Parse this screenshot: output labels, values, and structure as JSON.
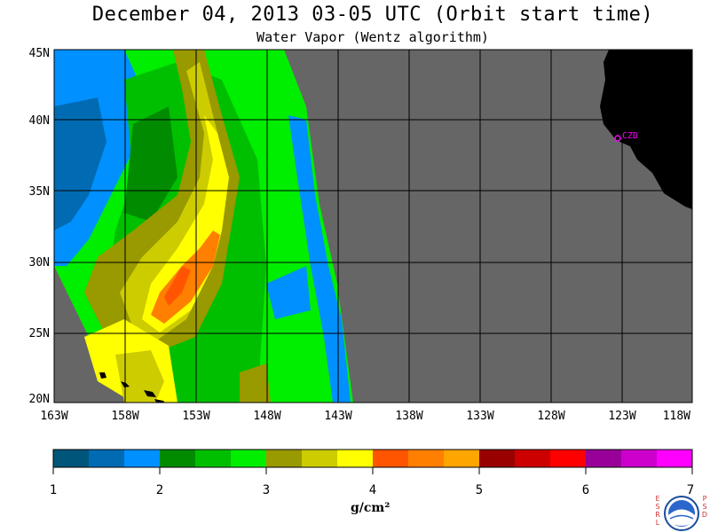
{
  "header": {
    "title": "December 04, 2013  03-05 UTC  (Orbit start time)",
    "subtitle": "Water Vapor (Wentz algorithm)"
  },
  "axes": {
    "lat_labels": [
      "45N",
      "40N",
      "35N",
      "30N",
      "25N",
      "20N"
    ],
    "lon_labels": [
      "163W",
      "158W",
      "153W",
      "148W",
      "143W",
      "138W",
      "133W",
      "128W",
      "123W",
      "118W"
    ]
  },
  "station": {
    "label": "CZD",
    "color": "#ff00ff"
  },
  "colorbar": {
    "tick_labels": [
      "1",
      "2",
      "3",
      "4",
      "5",
      "6",
      "7"
    ],
    "units": "g/cm²",
    "colors": [
      "#00557a",
      "#006bb3",
      "#0090ff",
      "#008b00",
      "#00bf00",
      "#00ee00",
      "#999900",
      "#cccc00",
      "#ffff00",
      "#ff5500",
      "#ff7f00",
      "#ffa500",
      "#990000",
      "#cc0000",
      "#ff0000",
      "#990099",
      "#cc00cc",
      "#ff00ff"
    ]
  },
  "logo": {
    "left_letters": [
      "E",
      "S",
      "R",
      "L"
    ],
    "right_letters": [
      "P",
      "S",
      "D"
    ],
    "name": "NOAA"
  },
  "colors": {
    "no_data_gray": "#666666",
    "land_black": "#000000"
  }
}
